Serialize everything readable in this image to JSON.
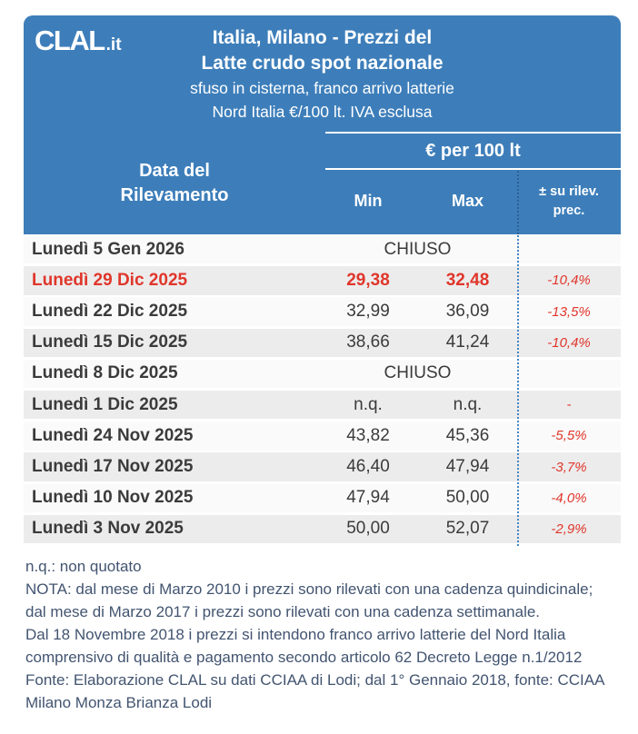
{
  "brand": {
    "logo_text": "CLAL",
    "logo_suffix": ".it"
  },
  "header": {
    "title_line1": "Italia, Milano - Prezzi del",
    "title_line2": "Latte crudo spot nazionale",
    "subtitle_line1": "sfuso in cisterna, franco arrivo latterie",
    "subtitle_line2": "Nord Italia €/100 lt. IVA esclusa"
  },
  "table": {
    "date_header_line1": "Data del",
    "date_header_line2": "Rilevamento",
    "price_group_header": "€ per 100 lt",
    "min_header": "Min",
    "max_header": "Max",
    "change_header_line1": "± su rilev.",
    "change_header_line2": "prec.",
    "rows": [
      {
        "date": "Lunedì 5 Gen 2026",
        "status": "CHIUSO",
        "change": ""
      },
      {
        "date": "Lunedì 29 Dic 2025",
        "min": "29,38",
        "max": "32,48",
        "change": "-10,4%"
      },
      {
        "date": "Lunedì 22 Dic 2025",
        "min": "32,99",
        "max": "36,09",
        "change": "-13,5%"
      },
      {
        "date": "Lunedì 15 Dic 2025",
        "min": "38,66",
        "max": "41,24",
        "change": "-10,4%"
      },
      {
        "date": "Lunedì 8 Dic 2025",
        "status": "CHIUSO",
        "change": ""
      },
      {
        "date": "Lunedì 1 Dic 2025",
        "min": "n.q.",
        "max": "n.q.",
        "change": "-"
      },
      {
        "date": "Lunedì 24 Nov 2025",
        "min": "43,82",
        "max": "45,36",
        "change": "-5,5%"
      },
      {
        "date": "Lunedì 17 Nov 2025",
        "min": "46,40",
        "max": "47,94",
        "change": "-3,7%"
      },
      {
        "date": "Lunedì 10 Nov 2025",
        "min": "47,94",
        "max": "50,00",
        "change": "-4,0%"
      },
      {
        "date": "Lunedì 3 Nov 2025",
        "min": "50,00",
        "max": "52,07",
        "change": "-2,9%"
      }
    ]
  },
  "footer": {
    "notes": [
      "n.q.: non quotato",
      "NOTA: dal mese di Marzo 2010 i prezzi sono rilevati con una cadenza quindicinale; dal mese di Marzo 2017 i prezzi sono rilevati con una cadenza settimanale.",
      "Dal 18 Novembre 2018 i prezzi si intendono franco arrivo latterie del Nord Italia comprensivo di qualità e pagamento secondo articolo 62 Decreto Legge n.1/2012",
      "Fonte: Elaborazione CLAL su dati CCIAA di Lodi; dal 1° Gennaio 2018, fonte: CCIAA Milano Monza Brianza Lodi"
    ]
  },
  "colors": {
    "brand_blue": "#3d7eba",
    "alert_red": "#e0362b",
    "row_gray": "#ececec",
    "row_light": "#fafafa",
    "footer_text": "#425470"
  },
  "chart_data": {
    "type": "table",
    "title": "Italia, Milano - Prezzi del Latte crudo spot nazionale",
    "subtitle": "sfuso in cisterna, franco arrivo latterie — Nord Italia €/100 lt. IVA esclusa",
    "unit": "€ per 100 lt",
    "columns": [
      "Data del Rilevamento",
      "Min",
      "Max",
      "± su rilev. prec."
    ],
    "rows": [
      [
        "Lunedì 5 Gen 2026",
        "CHIUSO",
        "CHIUSO",
        ""
      ],
      [
        "Lunedì 29 Dic 2025",
        "29,38",
        "32,48",
        "-10,4%"
      ],
      [
        "Lunedì 22 Dic 2025",
        "32,99",
        "36,09",
        "-13,5%"
      ],
      [
        "Lunedì 15 Dic 2025",
        "38,66",
        "41,24",
        "-10,4%"
      ],
      [
        "Lunedì 8 Dic 2025",
        "CHIUSO",
        "CHIUSO",
        ""
      ],
      [
        "Lunedì 1 Dic 2025",
        "n.q.",
        "n.q.",
        "-"
      ],
      [
        "Lunedì 24 Nov 2025",
        "43,82",
        "45,36",
        "-5,5%"
      ],
      [
        "Lunedì 17 Nov 2025",
        "46,40",
        "47,94",
        "-3,7%"
      ],
      [
        "Lunedì 10 Nov 2025",
        "47,94",
        "50,00",
        "-4,0%"
      ],
      [
        "Lunedì 3 Nov 2025",
        "50,00",
        "52,07",
        "-2,9%"
      ]
    ]
  }
}
